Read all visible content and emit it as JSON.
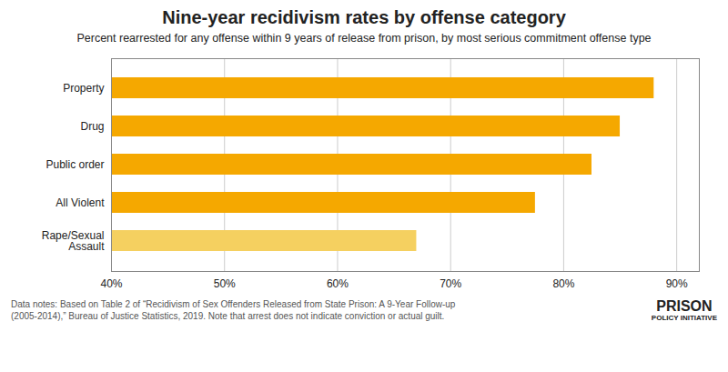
{
  "chart_data": {
    "type": "bar",
    "orientation": "horizontal",
    "title": "Nine-year recidivism rates by offense category",
    "subtitle": "Percent rearrested for any offense within 9 years of release from prison, by most serious commitment offense type",
    "categories": [
      "Property",
      "Drug",
      "Public order",
      "All Violent",
      "Rape/Sexual\nAssault"
    ],
    "values": [
      88.0,
      85.0,
      82.5,
      77.5,
      67.0
    ],
    "colors": [
      "#F5A800",
      "#F5A800",
      "#F5A800",
      "#F5A800",
      "#F5D060"
    ],
    "xlim": [
      40,
      92
    ],
    "xticks": [
      {
        "value": 40,
        "label": "40%"
      },
      {
        "value": 50,
        "label": "50%"
      },
      {
        "value": 60,
        "label": "60%"
      },
      {
        "value": 70,
        "label": "70%"
      },
      {
        "value": 80,
        "label": "80%"
      },
      {
        "value": 90,
        "label": "90%"
      }
    ],
    "grid": true,
    "annotations": [
      "Data notes: Based on Table 2 of “Recidivism of Sex Offenders Released from State Prison: A 9-Year Follow-up\n(2005-2014),” Bureau of Justice Statistics, 2019. Note that arrest does not indicate conviction or actual guilt.",
      "PRISON",
      "POLICY INITIATIVE"
    ]
  }
}
